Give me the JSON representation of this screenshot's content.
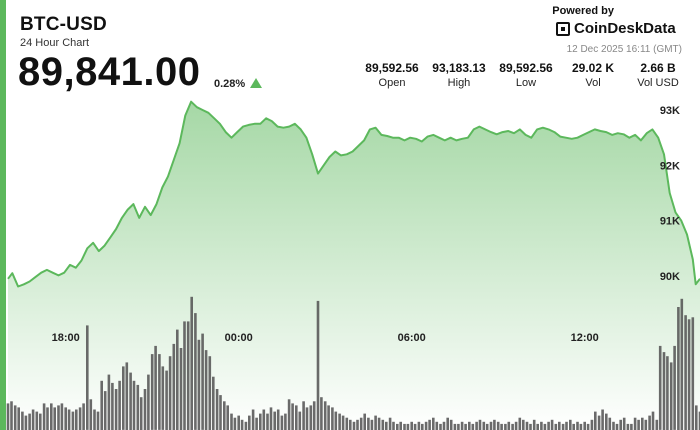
{
  "header": {
    "title": "BTC-USD",
    "subtitle": "24 Hour Chart",
    "price": "89,841.00",
    "change": "0.28%",
    "powered_by": "Powered by",
    "brand": "CoinDeskData",
    "timestamp": "12 Dec 2025 16:11 (GMT)"
  },
  "stats": [
    {
      "value": "89,592.56",
      "label": "Open"
    },
    {
      "value": "93,183.13",
      "label": "High"
    },
    {
      "value": "89,592.56",
      "label": "Low"
    },
    {
      "value": "29.02 K",
      "label": "Vol"
    },
    {
      "value": "2.66 B",
      "label": "Vol USD"
    }
  ],
  "colors": {
    "accent": "#5cb85c",
    "line": "#5cb85c",
    "volume": "#555555"
  },
  "chart_data": {
    "type": "area",
    "title": "",
    "y_ticks": [
      "93K",
      "92K",
      "91K",
      "90K"
    ],
    "y_tick_values": [
      93000,
      92000,
      91000,
      90000
    ],
    "x_ticks": [
      "18:00",
      "00:00",
      "06:00",
      "12:00"
    ],
    "x_tick_hours": [
      2,
      8,
      14,
      20
    ],
    "x_range_hours": [
      0,
      24
    ],
    "ylim": [
      88600,
      93300
    ],
    "grid": false,
    "price_series": [
      [
        0.0,
        89950
      ],
      [
        0.15,
        90050
      ],
      [
        0.35,
        89810
      ],
      [
        0.55,
        89850
      ],
      [
        0.75,
        89900
      ],
      [
        0.95,
        89980
      ],
      [
        1.15,
        90060
      ],
      [
        1.35,
        90110
      ],
      [
        1.55,
        90060
      ],
      [
        1.75,
        90010
      ],
      [
        1.95,
        90060
      ],
      [
        2.15,
        90200
      ],
      [
        2.35,
        90150
      ],
      [
        2.55,
        90280
      ],
      [
        2.75,
        90500
      ],
      [
        2.95,
        90600
      ],
      [
        3.15,
        90450
      ],
      [
        3.35,
        90550
      ],
      [
        3.55,
        90700
      ],
      [
        3.75,
        90850
      ],
      [
        3.95,
        91050
      ],
      [
        4.15,
        91200
      ],
      [
        4.35,
        91300
      ],
      [
        4.55,
        91050
      ],
      [
        4.75,
        91250
      ],
      [
        4.95,
        91100
      ],
      [
        5.15,
        91300
      ],
      [
        5.35,
        91600
      ],
      [
        5.55,
        91800
      ],
      [
        5.75,
        92100
      ],
      [
        5.95,
        92400
      ],
      [
        6.15,
        92900
      ],
      [
        6.35,
        93150
      ],
      [
        6.55,
        93050
      ],
      [
        6.75,
        93000
      ],
      [
        6.95,
        92950
      ],
      [
        7.15,
        92850
      ],
      [
        7.35,
        92750
      ],
      [
        7.55,
        92600
      ],
      [
        7.75,
        92500
      ],
      [
        7.95,
        92600
      ],
      [
        8.15,
        92700
      ],
      [
        8.35,
        92730
      ],
      [
        8.55,
        92750
      ],
      [
        8.75,
        92750
      ],
      [
        8.95,
        92850
      ],
      [
        9.15,
        92800
      ],
      [
        9.35,
        92700
      ],
      [
        9.55,
        92680
      ],
      [
        9.75,
        92700
      ],
      [
        9.95,
        92750
      ],
      [
        10.15,
        92650
      ],
      [
        10.35,
        92500
      ],
      [
        10.55,
        92200
      ],
      [
        10.75,
        91850
      ],
      [
        10.95,
        92000
      ],
      [
        11.15,
        92150
      ],
      [
        11.35,
        92250
      ],
      [
        11.55,
        92180
      ],
      [
        11.75,
        92200
      ],
      [
        11.95,
        92250
      ],
      [
        12.15,
        92350
      ],
      [
        12.35,
        92450
      ],
      [
        12.55,
        92650
      ],
      [
        12.75,
        92680
      ],
      [
        12.95,
        92550
      ],
      [
        13.15,
        92530
      ],
      [
        13.35,
        92500
      ],
      [
        13.55,
        92500
      ],
      [
        13.75,
        92450
      ],
      [
        13.95,
        92500
      ],
      [
        14.15,
        92480
      ],
      [
        14.35,
        92430
      ],
      [
        14.55,
        92520
      ],
      [
        14.75,
        92550
      ],
      [
        14.95,
        92500
      ],
      [
        15.15,
        92450
      ],
      [
        15.35,
        92500
      ],
      [
        15.55,
        92450
      ],
      [
        15.75,
        92480
      ],
      [
        15.95,
        92500
      ],
      [
        16.15,
        92650
      ],
      [
        16.35,
        92700
      ],
      [
        16.55,
        92650
      ],
      [
        16.75,
        92600
      ],
      [
        16.95,
        92560
      ],
      [
        17.15,
        92600
      ],
      [
        17.35,
        92620
      ],
      [
        17.55,
        92580
      ],
      [
        17.75,
        92650
      ],
      [
        17.95,
        92550
      ],
      [
        18.15,
        92500
      ],
      [
        18.35,
        92650
      ],
      [
        18.55,
        92680
      ],
      [
        18.75,
        92650
      ],
      [
        18.95,
        92600
      ],
      [
        19.15,
        92520
      ],
      [
        19.35,
        92500
      ],
      [
        19.55,
        92480
      ],
      [
        19.75,
        92500
      ],
      [
        19.95,
        92550
      ],
      [
        20.15,
        92600
      ],
      [
        20.35,
        92650
      ],
      [
        20.55,
        92620
      ],
      [
        20.75,
        92600
      ],
      [
        20.95,
        92550
      ],
      [
        21.15,
        92580
      ],
      [
        21.35,
        92560
      ],
      [
        21.55,
        92500
      ],
      [
        21.75,
        92550
      ],
      [
        21.95,
        92450
      ],
      [
        22.15,
        92580
      ],
      [
        22.35,
        92650
      ],
      [
        22.55,
        92500
      ],
      [
        22.75,
        92200
      ],
      [
        22.95,
        91500
      ],
      [
        23.15,
        91150
      ],
      [
        23.35,
        91000
      ],
      [
        23.55,
        90750
      ],
      [
        23.75,
        90300
      ],
      [
        23.85,
        89850
      ],
      [
        24.0,
        89950
      ]
    ],
    "volume_units": "relative 0-100",
    "volume_series": [
      [
        0.0,
        13
      ],
      [
        0.12,
        14
      ],
      [
        0.25,
        12
      ],
      [
        0.37,
        11
      ],
      [
        0.5,
        9
      ],
      [
        0.62,
        7
      ],
      [
        0.75,
        8
      ],
      [
        0.87,
        10
      ],
      [
        1.0,
        9
      ],
      [
        1.12,
        8
      ],
      [
        1.25,
        13
      ],
      [
        1.37,
        11
      ],
      [
        1.5,
        13
      ],
      [
        1.62,
        11
      ],
      [
        1.75,
        12
      ],
      [
        1.87,
        13
      ],
      [
        2.0,
        11
      ],
      [
        2.12,
        10
      ],
      [
        2.25,
        9
      ],
      [
        2.37,
        10
      ],
      [
        2.5,
        11
      ],
      [
        2.62,
        13
      ],
      [
        2.75,
        51
      ],
      [
        2.87,
        15
      ],
      [
        3.0,
        10
      ],
      [
        3.12,
        9
      ],
      [
        3.25,
        24
      ],
      [
        3.37,
        19
      ],
      [
        3.5,
        27
      ],
      [
        3.62,
        23
      ],
      [
        3.75,
        20
      ],
      [
        3.87,
        24
      ],
      [
        4.0,
        31
      ],
      [
        4.12,
        33
      ],
      [
        4.25,
        28
      ],
      [
        4.37,
        24
      ],
      [
        4.5,
        22
      ],
      [
        4.62,
        16
      ],
      [
        4.75,
        20
      ],
      [
        4.87,
        27
      ],
      [
        5.0,
        37
      ],
      [
        5.12,
        41
      ],
      [
        5.25,
        37
      ],
      [
        5.37,
        31
      ],
      [
        5.5,
        29
      ],
      [
        5.62,
        36
      ],
      [
        5.75,
        42
      ],
      [
        5.87,
        49
      ],
      [
        6.0,
        40
      ],
      [
        6.12,
        53
      ],
      [
        6.25,
        53
      ],
      [
        6.37,
        65
      ],
      [
        6.5,
        57
      ],
      [
        6.62,
        44
      ],
      [
        6.75,
        47
      ],
      [
        6.87,
        39
      ],
      [
        7.0,
        36
      ],
      [
        7.12,
        26
      ],
      [
        7.25,
        20
      ],
      [
        7.37,
        17
      ],
      [
        7.5,
        14
      ],
      [
        7.62,
        12
      ],
      [
        7.75,
        8
      ],
      [
        7.87,
        6
      ],
      [
        8.0,
        7
      ],
      [
        8.12,
        5
      ],
      [
        8.25,
        4
      ],
      [
        8.37,
        7
      ],
      [
        8.5,
        10
      ],
      [
        8.62,
        6
      ],
      [
        8.75,
        8
      ],
      [
        8.87,
        10
      ],
      [
        9.0,
        8
      ],
      [
        9.12,
        11
      ],
      [
        9.25,
        9
      ],
      [
        9.37,
        10
      ],
      [
        9.5,
        7
      ],
      [
        9.62,
        8
      ],
      [
        9.75,
        15
      ],
      [
        9.87,
        13
      ],
      [
        10.0,
        12
      ],
      [
        10.12,
        9
      ],
      [
        10.25,
        14
      ],
      [
        10.37,
        11
      ],
      [
        10.5,
        12
      ],
      [
        10.62,
        14
      ],
      [
        10.75,
        63
      ],
      [
        10.87,
        16
      ],
      [
        11.0,
        14
      ],
      [
        11.12,
        12
      ],
      [
        11.25,
        11
      ],
      [
        11.37,
        9
      ],
      [
        11.5,
        8
      ],
      [
        11.62,
        7
      ],
      [
        11.75,
        6
      ],
      [
        11.87,
        5
      ],
      [
        12.0,
        4
      ],
      [
        12.12,
        5
      ],
      [
        12.25,
        6
      ],
      [
        12.37,
        8
      ],
      [
        12.5,
        6
      ],
      [
        12.62,
        5
      ],
      [
        12.75,
        7
      ],
      [
        12.87,
        6
      ],
      [
        13.0,
        5
      ],
      [
        13.12,
        4
      ],
      [
        13.25,
        6
      ],
      [
        13.37,
        4
      ],
      [
        13.5,
        3
      ],
      [
        13.62,
        4
      ],
      [
        13.75,
        3
      ],
      [
        13.87,
        3
      ],
      [
        14.0,
        4
      ],
      [
        14.12,
        3
      ],
      [
        14.25,
        4
      ],
      [
        14.37,
        3
      ],
      [
        14.5,
        4
      ],
      [
        14.62,
        5
      ],
      [
        14.75,
        6
      ],
      [
        14.87,
        4
      ],
      [
        15.0,
        3
      ],
      [
        15.12,
        4
      ],
      [
        15.25,
        6
      ],
      [
        15.37,
        5
      ],
      [
        15.5,
        3
      ],
      [
        15.62,
        3
      ],
      [
        15.75,
        4
      ],
      [
        15.87,
        3
      ],
      [
        16.0,
        4
      ],
      [
        16.12,
        3
      ],
      [
        16.25,
        4
      ],
      [
        16.37,
        5
      ],
      [
        16.5,
        4
      ],
      [
        16.62,
        3
      ],
      [
        16.75,
        4
      ],
      [
        16.87,
        5
      ],
      [
        17.0,
        4
      ],
      [
        17.12,
        3
      ],
      [
        17.25,
        3
      ],
      [
        17.37,
        4
      ],
      [
        17.5,
        3
      ],
      [
        17.62,
        4
      ],
      [
        17.75,
        6
      ],
      [
        17.87,
        5
      ],
      [
        18.0,
        4
      ],
      [
        18.12,
        3
      ],
      [
        18.25,
        5
      ],
      [
        18.37,
        3
      ],
      [
        18.5,
        4
      ],
      [
        18.62,
        3
      ],
      [
        18.75,
        4
      ],
      [
        18.87,
        5
      ],
      [
        19.0,
        3
      ],
      [
        19.12,
        4
      ],
      [
        19.25,
        3
      ],
      [
        19.37,
        4
      ],
      [
        19.5,
        5
      ],
      [
        19.62,
        3
      ],
      [
        19.75,
        4
      ],
      [
        19.87,
        3
      ],
      [
        20.0,
        4
      ],
      [
        20.12,
        3
      ],
      [
        20.25,
        5
      ],
      [
        20.37,
        9
      ],
      [
        20.5,
        7
      ],
      [
        20.62,
        10
      ],
      [
        20.75,
        8
      ],
      [
        20.87,
        6
      ],
      [
        21.0,
        4
      ],
      [
        21.12,
        3
      ],
      [
        21.25,
        5
      ],
      [
        21.37,
        6
      ],
      [
        21.5,
        3
      ],
      [
        21.62,
        3
      ],
      [
        21.75,
        6
      ],
      [
        21.87,
        5
      ],
      [
        22.0,
        6
      ],
      [
        22.12,
        5
      ],
      [
        22.25,
        7
      ],
      [
        22.37,
        9
      ],
      [
        22.5,
        5
      ],
      [
        22.62,
        41
      ],
      [
        22.75,
        38
      ],
      [
        22.87,
        36
      ],
      [
        23.0,
        33
      ],
      [
        23.12,
        41
      ],
      [
        23.25,
        60
      ],
      [
        23.37,
        64
      ],
      [
        23.5,
        56
      ],
      [
        23.62,
        54
      ],
      [
        23.75,
        55
      ],
      [
        23.87,
        12
      ],
      [
        24.0,
        9
      ]
    ]
  }
}
